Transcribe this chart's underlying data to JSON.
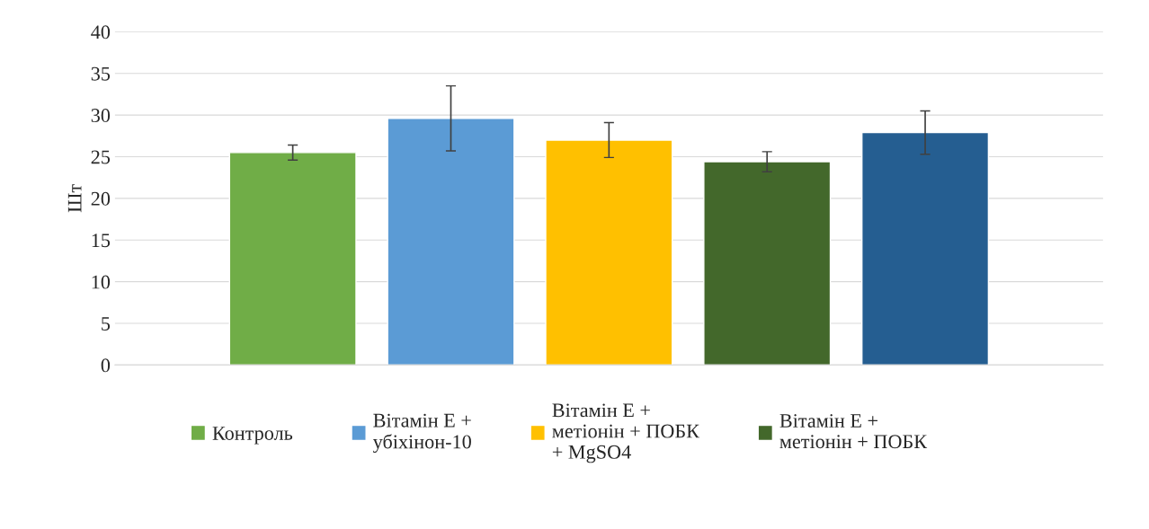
{
  "chart_data": {
    "type": "bar",
    "ylabel": "Шт",
    "categories": [
      null
    ],
    "series": [
      {
        "name": "Контроль",
        "color": "#70ad47",
        "values": [
          25.5
        ],
        "errors": [
          0.9
        ]
      },
      {
        "name": "Вітамін Е +\nубіхінон-10",
        "color": "#5b9bd5",
        "values": [
          29.6
        ],
        "errors": [
          3.9
        ]
      },
      {
        "name": "Вітамін Е +\nметіонін + ПОБК\n+ MgSO4",
        "color": "#ffc000",
        "values": [
          27.0
        ],
        "errors": [
          2.1
        ]
      },
      {
        "name": "Вітамін Е +\nметіонін + ПОБК",
        "color": "#43682b",
        "values": [
          24.4
        ],
        "errors": [
          1.2
        ]
      },
      {
        "color": "#255e91",
        "values": [
          27.9
        ],
        "errors": [
          2.6
        ]
      }
    ],
    "ylim": [
      0,
      40
    ],
    "yticks": [
      0,
      5,
      10,
      15,
      20,
      25,
      30,
      35,
      40
    ],
    "grid": "y",
    "legend": "bottom"
  }
}
